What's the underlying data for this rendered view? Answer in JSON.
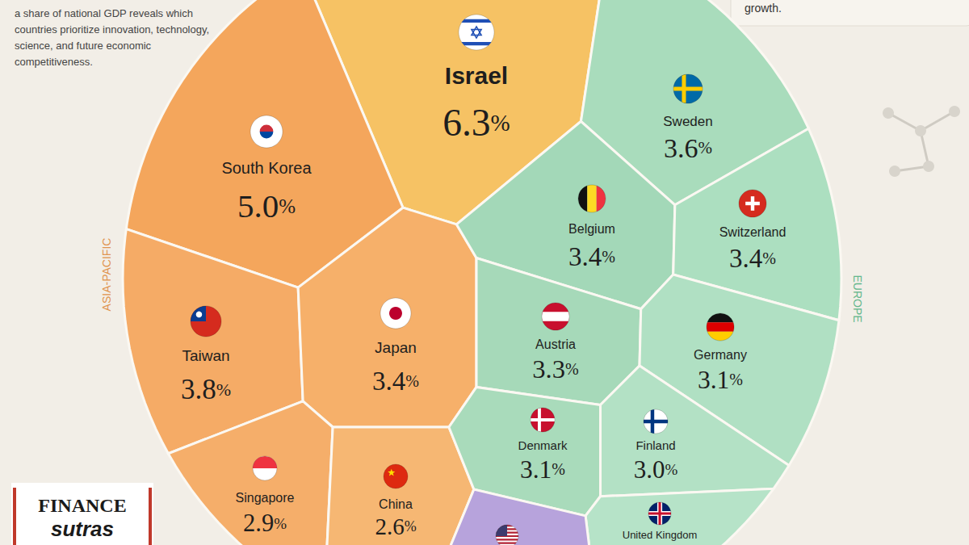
{
  "chart_data": {
    "type": "voronoi",
    "subtitle": "a share of national GDP reveals which countries prioritize innovation, technology, science, and future economic competitiveness.",
    "categories": [
      "Israel",
      "South Korea",
      "Taiwan",
      "Japan",
      "Singapore",
      "China",
      "Sweden",
      "Belgium",
      "Switzerland",
      "Austria",
      "Germany",
      "Denmark",
      "Finland",
      "United Kingdom",
      null
    ],
    "values": [
      6.3,
      5.0,
      3.8,
      3.4,
      2.9,
      2.6,
      3.6,
      3.4,
      3.4,
      3.3,
      3.1,
      3.1,
      3.0,
      null,
      null
    ],
    "value_labels": [
      "6.3%",
      "5.0%",
      "3.8%",
      "3.4%",
      "2.9%",
      "2.6%",
      "3.6%",
      "3.4%",
      "3.4%",
      "3.3%",
      "3.1%",
      "3.1%",
      "3.0%",
      null,
      null
    ],
    "colors": [
      "#f6c264",
      "#f4a65c",
      "#f5ab66",
      "#f6b06a",
      "#f5ae6a",
      "#f6b773",
      "#a9dcbc",
      "#a3d8b8",
      "#acdfc0",
      "#a6d9b9",
      "#b0e0c3",
      "#a9dbbb",
      "#b3e1c5",
      "#b6e3c8",
      "#b7a3dc"
    ],
    "data_labels": true,
    "annotations": [
      "ASIA-PACIFIC",
      "EUROPE",
      "growth.",
      "FINANCE",
      "sutras"
    ]
  }
}
